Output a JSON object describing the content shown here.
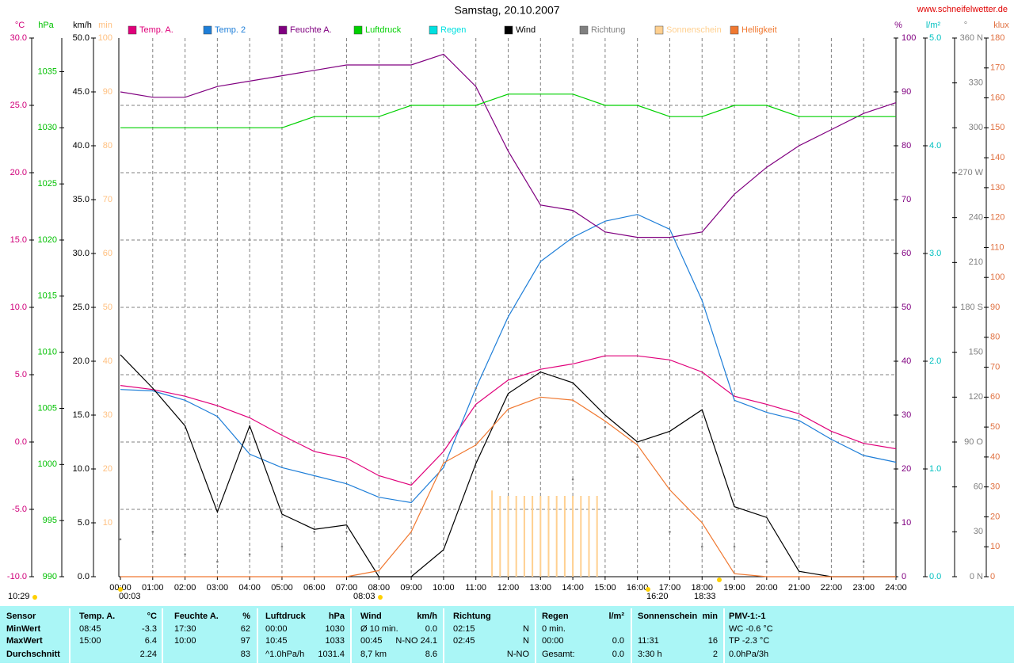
{
  "chart_data": {
    "type": "line",
    "title": "Samstag, 20.10.2007",
    "source": "www.schneifelwetter.de",
    "xlim": [
      0,
      24
    ],
    "xticks": [
      {
        "value": 0,
        "label": "00:00"
      },
      {
        "value": 1,
        "label": "01:00"
      },
      {
        "value": 2,
        "label": "02:00"
      },
      {
        "value": 3,
        "label": "03:00"
      },
      {
        "value": 4,
        "label": "04:00"
      },
      {
        "value": 5,
        "label": "05:00"
      },
      {
        "value": 6,
        "label": "06:00"
      },
      {
        "value": 7,
        "label": "07:00"
      },
      {
        "value": 8,
        "label": "08:00"
      },
      {
        "value": 9,
        "label": "09:00"
      },
      {
        "value": 10,
        "label": "10:00"
      },
      {
        "value": 11,
        "label": "11:00"
      },
      {
        "value": 12,
        "label": "12:00"
      },
      {
        "value": 13,
        "label": "13:00"
      },
      {
        "value": 14,
        "label": "14:00"
      },
      {
        "value": 15,
        "label": "15:00"
      },
      {
        "value": 16,
        "label": "16:00"
      },
      {
        "value": 17,
        "label": "17:00"
      },
      {
        "value": 18,
        "label": "18:00"
      },
      {
        "value": 19,
        "label": "19:00"
      },
      {
        "value": 20,
        "label": "20:00"
      },
      {
        "value": 21,
        "label": "21:00"
      },
      {
        "value": 22,
        "label": "22:00"
      },
      {
        "value": 23,
        "label": "23:00"
      },
      {
        "value": 24,
        "label": "24:00"
      }
    ],
    "grid": true,
    "grid_axis": "°C",
    "axes": [
      {
        "name": "°C",
        "color": "#d0007a",
        "lim": [
          -10,
          30
        ],
        "ticks": [
          {
            "value": -10,
            "label": "-10.0"
          },
          {
            "value": -5,
            "label": "-5.0"
          },
          {
            "value": 0,
            "label": "0.0"
          },
          {
            "value": 5,
            "label": "5.0"
          },
          {
            "value": 10,
            "label": "10.0"
          },
          {
            "value": 15,
            "label": "15.0"
          },
          {
            "value": 20,
            "label": "20.0"
          },
          {
            "value": 25,
            "label": "25.0"
          },
          {
            "value": 30,
            "label": "30.0"
          }
        ]
      },
      {
        "name": "hPa",
        "color": "#00c000",
        "lim": [
          990,
          1038
        ],
        "ticks": [
          990,
          995,
          1000,
          1005,
          1010,
          1015,
          1020,
          1025,
          1030,
          1035
        ]
      },
      {
        "name": "km/h",
        "color": "#000000",
        "lim": [
          0,
          50
        ],
        "ticks": [
          {
            "value": 0,
            "label": "0.0"
          },
          {
            "value": 5,
            "label": "5.0"
          },
          {
            "value": 10,
            "label": "10.0"
          },
          {
            "value": 15,
            "label": "15.0"
          },
          {
            "value": 20,
            "label": "20.0"
          },
          {
            "value": 25,
            "label": "25.0"
          },
          {
            "value": 30,
            "label": "30.0"
          },
          {
            "value": 35,
            "label": "35.0"
          },
          {
            "value": 40,
            "label": "40.0"
          },
          {
            "value": 45,
            "label": "45.0"
          },
          {
            "value": 50,
            "label": "50.0"
          }
        ]
      },
      {
        "name": "min",
        "color": "#ffc080",
        "lim": [
          0,
          100
        ],
        "ticks": [
          10,
          20,
          30,
          40,
          50,
          60,
          70,
          80,
          90,
          100
        ]
      },
      {
        "name": "%",
        "color": "#800080",
        "lim": [
          0,
          100
        ],
        "ticks": [
          0,
          10,
          20,
          30,
          40,
          50,
          60,
          70,
          80,
          90,
          100
        ]
      },
      {
        "name": "l/m²",
        "color": "#00c0c0",
        "lim": [
          0,
          5
        ],
        "ticks": [
          {
            "value": 0,
            "label": "0.0"
          },
          {
            "value": 1,
            "label": "1.0"
          },
          {
            "value": 2,
            "label": "2.0"
          },
          {
            "value": 3,
            "label": "3.0"
          },
          {
            "value": 4,
            "label": "4.0"
          },
          {
            "value": 5,
            "label": "5.0"
          }
        ]
      },
      {
        "name": "°",
        "color": "#808080",
        "lim": [
          0,
          360
        ],
        "ticks": [
          {
            "value": 0,
            "label": "0 N"
          },
          30,
          60,
          {
            "value": 90,
            "label": "90 O"
          },
          120,
          150,
          {
            "value": 180,
            "label": "180 S"
          },
          210,
          240,
          {
            "value": 270,
            "label": "270 W"
          },
          300,
          330,
          {
            "value": 360,
            "label": "360 N"
          }
        ]
      },
      {
        "name": "klux",
        "color": "#e07040",
        "lim": [
          0,
          180
        ],
        "ticks": [
          0,
          10,
          20,
          30,
          40,
          50,
          60,
          70,
          80,
          90,
          100,
          110,
          120,
          130,
          140,
          150,
          160,
          170,
          180
        ]
      }
    ],
    "x": [
      0,
      1,
      2,
      3,
      4,
      5,
      6,
      7,
      8,
      9,
      10,
      11,
      12,
      13,
      14,
      15,
      16,
      17,
      18,
      19,
      20,
      21,
      22,
      23,
      24
    ],
    "series": [
      {
        "name": "Temp. A.",
        "color": "#e0007a",
        "axis": "°C",
        "type": "line",
        "values": [
          4.2,
          3.9,
          3.4,
          2.7,
          1.8,
          0.5,
          -0.7,
          -1.2,
          -2.5,
          -3.2,
          -0.7,
          2.8,
          4.6,
          5.4,
          5.8,
          6.4,
          6.4,
          6.1,
          5.2,
          3.4,
          2.8,
          2.1,
          0.8,
          -0.1,
          -0.5
        ]
      },
      {
        "name": "Temp. 2",
        "color": "#1e7ed8",
        "axis": "°C",
        "type": "line",
        "values": [
          3.9,
          3.8,
          3.1,
          1.9,
          -0.9,
          -1.9,
          -2.5,
          -3.1,
          -4.1,
          -4.5,
          -1.9,
          4.0,
          9.3,
          13.4,
          15.2,
          16.4,
          16.9,
          15.8,
          10.5,
          3.1,
          2.2,
          1.6,
          0.2,
          -1.0,
          -1.5
        ]
      },
      {
        "name": "Feuchte A.",
        "color": "#800080",
        "axis": "%",
        "type": "line",
        "values": [
          90,
          89,
          89,
          91,
          92,
          93,
          94,
          95,
          95,
          95,
          97,
          91,
          79,
          69,
          68,
          64,
          63,
          63,
          64,
          71,
          76,
          80,
          83,
          86,
          88
        ]
      },
      {
        "name": "Luftdruck",
        "color": "#00d000",
        "axis": "hPa",
        "type": "line",
        "values": [
          1030,
          1030,
          1030,
          1030,
          1030,
          1030,
          1031,
          1031,
          1031,
          1032,
          1032,
          1032,
          1033,
          1033,
          1033,
          1032,
          1032,
          1031,
          1031,
          1032,
          1032,
          1031,
          1031,
          1031,
          1031
        ]
      },
      {
        "name": "Regen",
        "color": "#00e0e0",
        "axis": "l/m²",
        "type": "line"
      },
      {
        "name": "Wind",
        "color": "#000000",
        "axis": "km/h",
        "type": "line",
        "values": [
          20.6,
          17.5,
          14.0,
          6.0,
          14.0,
          5.8,
          4.4,
          4.8,
          0.0,
          0.0,
          2.5,
          10.5,
          17.0,
          19.0,
          18.0,
          15.0,
          12.5,
          13.5,
          15.5,
          6.5,
          5.5,
          0.5,
          0.0,
          0.0,
          0.0
        ]
      },
      {
        "name": "Richtung",
        "color": "#808080",
        "axis": "°",
        "type": "scatter",
        "values": [
          25,
          30,
          15,
          10,
          15,
          20,
          30,
          30,
          null,
          null,
          null,
          126,
          90,
          100,
          65,
          100,
          80,
          30,
          20,
          20,
          10,
          null,
          null,
          10,
          null
        ]
      },
      {
        "name": "Sonnenschein",
        "color": "#ffd090",
        "axis": "min",
        "type": "bar",
        "x": [
          11.5,
          11.75,
          12,
          12.25,
          12.5,
          12.75,
          13,
          13.25,
          13.5,
          13.75,
          14,
          14.25,
          14.5,
          14.75
        ],
        "values": [
          16,
          15,
          15,
          15,
          15,
          15,
          15,
          15,
          15,
          15,
          15,
          15,
          15,
          15
        ]
      },
      {
        "name": "Helligkeit",
        "color": "#f07830",
        "axis": "klux",
        "type": "line",
        "values": [
          0,
          0,
          0,
          0,
          0,
          0,
          0,
          0,
          2,
          15,
          38,
          44,
          56,
          60,
          59,
          52,
          44,
          29,
          18,
          1,
          0,
          0,
          0,
          0,
          0
        ]
      }
    ],
    "annotations": [
      "10:29",
      "00:03",
      "08:03",
      "16:20",
      "18:33"
    ]
  },
  "stats": {
    "rows": [
      [
        "Sensor",
        "Temp. A.",
        "°C",
        "Feuchte A.",
        "%",
        "Luftdruck",
        "hPa",
        "Wind",
        "km/h",
        "Richtung",
        null,
        "Regen",
        "l/m²",
        "Sonnenschein",
        "min",
        "PMV-1:-1"
      ],
      [
        "MinWert",
        "08:45",
        "-3.3",
        "17:30",
        "62",
        "00:00",
        "1030",
        "Ø 10 min.",
        "0.0",
        "02:15",
        "N",
        "0 min.",
        null,
        null,
        null,
        "WC -0.6 °C"
      ],
      [
        "MaxWert",
        "15:00",
        "6.4",
        "10:00",
        "97",
        "10:45",
        "1033",
        "00:45",
        "N-NO 24.1",
        "02:45",
        "N",
        "00:00",
        "0.0",
        "11:31",
        "16",
        "TP -2.3 °C"
      ],
      [
        "Durchschnitt",
        null,
        "2.24",
        null,
        "83",
        "^1.0hPa/h",
        "1031.4",
        "8,7 km",
        "8.6",
        null,
        "N-NO",
        "Gesamt:",
        "0.0",
        "3:30 h",
        "2",
        "0.0hPa/3h"
      ]
    ]
  }
}
